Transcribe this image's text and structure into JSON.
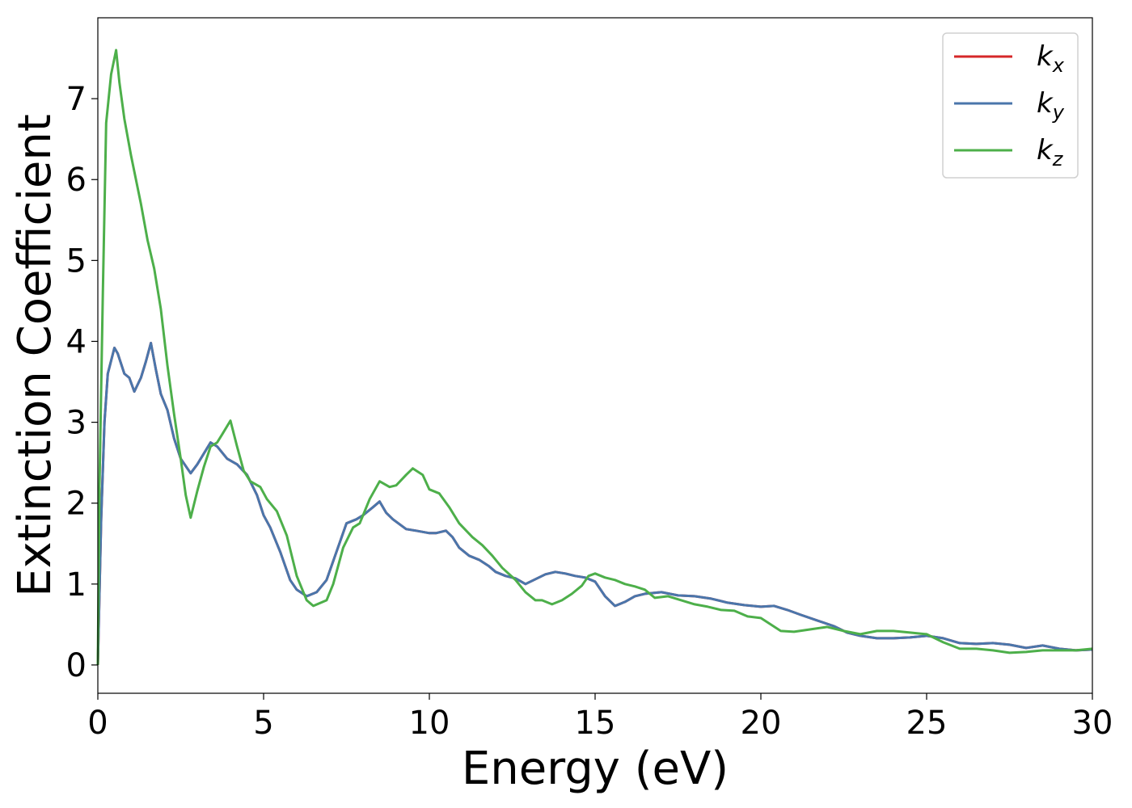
{
  "chart_data": {
    "type": "line",
    "title": "",
    "xlabel": "Energy (eV)",
    "ylabel": "Extinction Coefficient",
    "xlim": [
      0,
      30
    ],
    "ylim": [
      -0.35,
      8.0
    ],
    "xticks": [
      "0",
      "5",
      "10",
      "15",
      "20",
      "25",
      "30"
    ],
    "yticks": [
      "0",
      "1",
      "2",
      "3",
      "4",
      "5",
      "6",
      "7"
    ],
    "grid": false,
    "legend_position": "top-right",
    "series": [
      {
        "name": "k",
        "subscript": "x",
        "color": "#d62728",
        "points": [
          [
            0,
            0
          ],
          [
            0.1,
            1.8
          ],
          [
            0.2,
            3.0
          ],
          [
            0.3,
            3.6
          ],
          [
            0.5,
            3.92
          ],
          [
            0.6,
            3.85
          ],
          [
            0.8,
            3.6
          ],
          [
            0.95,
            3.55
          ],
          [
            1.1,
            3.38
          ],
          [
            1.3,
            3.55
          ],
          [
            1.45,
            3.75
          ],
          [
            1.6,
            3.98
          ],
          [
            1.75,
            3.65
          ],
          [
            1.9,
            3.35
          ],
          [
            2.1,
            3.15
          ],
          [
            2.3,
            2.8
          ],
          [
            2.5,
            2.55
          ],
          [
            2.8,
            2.37
          ],
          [
            3.0,
            2.48
          ],
          [
            3.4,
            2.75
          ],
          [
            3.6,
            2.7
          ],
          [
            3.9,
            2.55
          ],
          [
            4.2,
            2.48
          ],
          [
            4.5,
            2.35
          ],
          [
            4.8,
            2.1
          ],
          [
            5.0,
            1.85
          ],
          [
            5.2,
            1.7
          ],
          [
            5.5,
            1.4
          ],
          [
            5.8,
            1.05
          ],
          [
            6.0,
            0.93
          ],
          [
            6.3,
            0.85
          ],
          [
            6.6,
            0.9
          ],
          [
            6.9,
            1.05
          ],
          [
            7.2,
            1.4
          ],
          [
            7.5,
            1.75
          ],
          [
            7.8,
            1.8
          ],
          [
            8.0,
            1.85
          ],
          [
            8.3,
            1.95
          ],
          [
            8.5,
            2.02
          ],
          [
            8.7,
            1.88
          ],
          [
            8.9,
            1.8
          ],
          [
            9.3,
            1.68
          ],
          [
            9.6,
            1.66
          ],
          [
            10.0,
            1.63
          ],
          [
            10.2,
            1.63
          ],
          [
            10.5,
            1.66
          ],
          [
            10.7,
            1.58
          ],
          [
            10.9,
            1.45
          ],
          [
            11.2,
            1.35
          ],
          [
            11.5,
            1.3
          ],
          [
            11.8,
            1.22
          ],
          [
            12.0,
            1.15
          ],
          [
            12.3,
            1.1
          ],
          [
            12.6,
            1.07
          ],
          [
            12.9,
            1.0
          ],
          [
            13.2,
            1.06
          ],
          [
            13.5,
            1.12
          ],
          [
            13.8,
            1.15
          ],
          [
            14.1,
            1.13
          ],
          [
            14.4,
            1.1
          ],
          [
            14.7,
            1.08
          ],
          [
            15.0,
            1.03
          ],
          [
            15.3,
            0.85
          ],
          [
            15.6,
            0.73
          ],
          [
            15.9,
            0.78
          ],
          [
            16.2,
            0.85
          ],
          [
            16.5,
            0.88
          ],
          [
            17.0,
            0.9
          ],
          [
            17.5,
            0.86
          ],
          [
            18.0,
            0.85
          ],
          [
            18.5,
            0.82
          ],
          [
            19.0,
            0.77
          ],
          [
            19.5,
            0.74
          ],
          [
            20.0,
            0.72
          ],
          [
            20.4,
            0.73
          ],
          [
            20.8,
            0.68
          ],
          [
            21.2,
            0.62
          ],
          [
            21.7,
            0.55
          ],
          [
            22.2,
            0.48
          ],
          [
            22.6,
            0.4
          ],
          [
            23.0,
            0.36
          ],
          [
            23.5,
            0.33
          ],
          [
            24.0,
            0.33
          ],
          [
            24.5,
            0.34
          ],
          [
            25.0,
            0.36
          ],
          [
            25.5,
            0.33
          ],
          [
            26.0,
            0.27
          ],
          [
            26.5,
            0.26
          ],
          [
            27.0,
            0.27
          ],
          [
            27.5,
            0.25
          ],
          [
            28.0,
            0.21
          ],
          [
            28.5,
            0.24
          ],
          [
            29.0,
            0.2
          ],
          [
            29.5,
            0.18
          ],
          [
            30.0,
            0.19
          ]
        ]
      },
      {
        "name": "k",
        "subscript": "y",
        "color": "#4a76ab",
        "points": [
          [
            0,
            0
          ],
          [
            0.1,
            1.8
          ],
          [
            0.2,
            3.0
          ],
          [
            0.3,
            3.6
          ],
          [
            0.5,
            3.92
          ],
          [
            0.6,
            3.85
          ],
          [
            0.8,
            3.6
          ],
          [
            0.95,
            3.55
          ],
          [
            1.1,
            3.38
          ],
          [
            1.3,
            3.55
          ],
          [
            1.45,
            3.75
          ],
          [
            1.6,
            3.98
          ],
          [
            1.75,
            3.65
          ],
          [
            1.9,
            3.35
          ],
          [
            2.1,
            3.15
          ],
          [
            2.3,
            2.8
          ],
          [
            2.5,
            2.55
          ],
          [
            2.8,
            2.37
          ],
          [
            3.0,
            2.48
          ],
          [
            3.4,
            2.75
          ],
          [
            3.6,
            2.7
          ],
          [
            3.9,
            2.55
          ],
          [
            4.2,
            2.48
          ],
          [
            4.5,
            2.35
          ],
          [
            4.8,
            2.1
          ],
          [
            5.0,
            1.85
          ],
          [
            5.2,
            1.7
          ],
          [
            5.5,
            1.4
          ],
          [
            5.8,
            1.05
          ],
          [
            6.0,
            0.93
          ],
          [
            6.3,
            0.85
          ],
          [
            6.6,
            0.9
          ],
          [
            6.9,
            1.05
          ],
          [
            7.2,
            1.4
          ],
          [
            7.5,
            1.75
          ],
          [
            7.8,
            1.8
          ],
          [
            8.0,
            1.85
          ],
          [
            8.3,
            1.95
          ],
          [
            8.5,
            2.02
          ],
          [
            8.7,
            1.88
          ],
          [
            8.9,
            1.8
          ],
          [
            9.3,
            1.68
          ],
          [
            9.6,
            1.66
          ],
          [
            10.0,
            1.63
          ],
          [
            10.2,
            1.63
          ],
          [
            10.5,
            1.66
          ],
          [
            10.7,
            1.58
          ],
          [
            10.9,
            1.45
          ],
          [
            11.2,
            1.35
          ],
          [
            11.5,
            1.3
          ],
          [
            11.8,
            1.22
          ],
          [
            12.0,
            1.15
          ],
          [
            12.3,
            1.1
          ],
          [
            12.6,
            1.07
          ],
          [
            12.9,
            1.0
          ],
          [
            13.2,
            1.06
          ],
          [
            13.5,
            1.12
          ],
          [
            13.8,
            1.15
          ],
          [
            14.1,
            1.13
          ],
          [
            14.4,
            1.1
          ],
          [
            14.7,
            1.08
          ],
          [
            15.0,
            1.03
          ],
          [
            15.3,
            0.85
          ],
          [
            15.6,
            0.73
          ],
          [
            15.9,
            0.78
          ],
          [
            16.2,
            0.85
          ],
          [
            16.5,
            0.88
          ],
          [
            17.0,
            0.9
          ],
          [
            17.5,
            0.86
          ],
          [
            18.0,
            0.85
          ],
          [
            18.5,
            0.82
          ],
          [
            19.0,
            0.77
          ],
          [
            19.5,
            0.74
          ],
          [
            20.0,
            0.72
          ],
          [
            20.4,
            0.73
          ],
          [
            20.8,
            0.68
          ],
          [
            21.2,
            0.62
          ],
          [
            21.7,
            0.55
          ],
          [
            22.2,
            0.48
          ],
          [
            22.6,
            0.4
          ],
          [
            23.0,
            0.36
          ],
          [
            23.5,
            0.33
          ],
          [
            24.0,
            0.33
          ],
          [
            24.5,
            0.34
          ],
          [
            25.0,
            0.36
          ],
          [
            25.5,
            0.33
          ],
          [
            26.0,
            0.27
          ],
          [
            26.5,
            0.26
          ],
          [
            27.0,
            0.27
          ],
          [
            27.5,
            0.25
          ],
          [
            28.0,
            0.21
          ],
          [
            28.5,
            0.24
          ],
          [
            29.0,
            0.2
          ],
          [
            29.5,
            0.18
          ],
          [
            30.0,
            0.19
          ]
        ]
      },
      {
        "name": "k",
        "subscript": "z",
        "color": "#4daf4a",
        "points": [
          [
            0,
            0
          ],
          [
            0.05,
            2.2
          ],
          [
            0.15,
            4.6
          ],
          [
            0.25,
            6.7
          ],
          [
            0.4,
            7.3
          ],
          [
            0.55,
            7.6
          ],
          [
            0.65,
            7.2
          ],
          [
            0.8,
            6.75
          ],
          [
            1.0,
            6.3
          ],
          [
            1.3,
            5.7
          ],
          [
            1.5,
            5.25
          ],
          [
            1.7,
            4.9
          ],
          [
            1.9,
            4.4
          ],
          [
            2.1,
            3.7
          ],
          [
            2.3,
            3.1
          ],
          [
            2.5,
            2.55
          ],
          [
            2.65,
            2.1
          ],
          [
            2.8,
            1.82
          ],
          [
            3.0,
            2.15
          ],
          [
            3.2,
            2.45
          ],
          [
            3.4,
            2.7
          ],
          [
            3.6,
            2.75
          ],
          [
            3.75,
            2.85
          ],
          [
            4.0,
            3.02
          ],
          [
            4.2,
            2.7
          ],
          [
            4.4,
            2.4
          ],
          [
            4.6,
            2.27
          ],
          [
            4.9,
            2.2
          ],
          [
            5.1,
            2.05
          ],
          [
            5.4,
            1.9
          ],
          [
            5.7,
            1.6
          ],
          [
            6.0,
            1.1
          ],
          [
            6.3,
            0.8
          ],
          [
            6.5,
            0.73
          ],
          [
            6.9,
            0.8
          ],
          [
            7.1,
            1.0
          ],
          [
            7.4,
            1.45
          ],
          [
            7.7,
            1.7
          ],
          [
            7.9,
            1.75
          ],
          [
            8.2,
            2.05
          ],
          [
            8.5,
            2.27
          ],
          [
            8.8,
            2.2
          ],
          [
            9.0,
            2.22
          ],
          [
            9.3,
            2.35
          ],
          [
            9.5,
            2.43
          ],
          [
            9.8,
            2.35
          ],
          [
            10.0,
            2.17
          ],
          [
            10.3,
            2.12
          ],
          [
            10.6,
            1.95
          ],
          [
            10.9,
            1.75
          ],
          [
            11.3,
            1.58
          ],
          [
            11.6,
            1.48
          ],
          [
            11.9,
            1.35
          ],
          [
            12.2,
            1.2
          ],
          [
            12.6,
            1.05
          ],
          [
            12.9,
            0.9
          ],
          [
            13.2,
            0.8
          ],
          [
            13.4,
            0.8
          ],
          [
            13.7,
            0.75
          ],
          [
            14.0,
            0.8
          ],
          [
            14.3,
            0.88
          ],
          [
            14.6,
            0.98
          ],
          [
            14.8,
            1.1
          ],
          [
            15.0,
            1.13
          ],
          [
            15.3,
            1.08
          ],
          [
            15.6,
            1.05
          ],
          [
            15.9,
            1.0
          ],
          [
            16.2,
            0.97
          ],
          [
            16.5,
            0.93
          ],
          [
            16.8,
            0.83
          ],
          [
            17.2,
            0.85
          ],
          [
            17.6,
            0.8
          ],
          [
            18.0,
            0.75
          ],
          [
            18.4,
            0.72
          ],
          [
            18.8,
            0.68
          ],
          [
            19.2,
            0.67
          ],
          [
            19.6,
            0.6
          ],
          [
            20.0,
            0.58
          ],
          [
            20.3,
            0.5
          ],
          [
            20.6,
            0.42
          ],
          [
            21.0,
            0.41
          ],
          [
            21.5,
            0.44
          ],
          [
            22.0,
            0.47
          ],
          [
            22.5,
            0.42
          ],
          [
            23.0,
            0.38
          ],
          [
            23.5,
            0.42
          ],
          [
            24.0,
            0.42
          ],
          [
            24.5,
            0.4
          ],
          [
            25.0,
            0.38
          ],
          [
            25.5,
            0.28
          ],
          [
            26.0,
            0.2
          ],
          [
            26.5,
            0.2
          ],
          [
            27.0,
            0.18
          ],
          [
            27.5,
            0.15
          ],
          [
            28.0,
            0.16
          ],
          [
            28.5,
            0.18
          ],
          [
            29.0,
            0.18
          ],
          [
            29.5,
            0.18
          ],
          [
            30.0,
            0.2
          ]
        ]
      }
    ]
  }
}
